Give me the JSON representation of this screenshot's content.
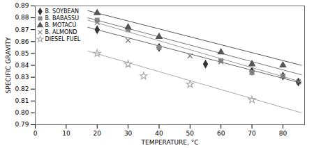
{
  "chart_data": {
    "type": "scatter",
    "xlabel": "TEMPERATURE, °C",
    "ylabel": "SPECIFIC GRAVITY",
    "xlim": [
      0,
      87
    ],
    "ylim": [
      0.79,
      0.89
    ],
    "xticks": [
      0,
      10,
      20,
      30,
      40,
      50,
      60,
      70,
      80
    ],
    "yticks": [
      0.79,
      {
        "value": 0.8,
        "label": "0.80"
      },
      0.81,
      0.82,
      0.83,
      0.84,
      0.85,
      0.86,
      0.87,
      0.88,
      0.89
    ],
    "grid": false,
    "legend": "upper left",
    "series": [
      {
        "name": "B. SOYBEAN",
        "color": "#333333",
        "marker": "diamond",
        "x": [
          20,
          40,
          55,
          70,
          80,
          85
        ],
        "values": [
          0.87,
          0.855,
          0.841,
          0.835,
          0.831,
          0.826
        ],
        "trend": {
          "color": "#666666",
          "x": [
            17,
            86
          ],
          "values": [
            0.872,
            0.825
          ]
        }
      },
      {
        "name": "B. BABASSU",
        "color": "#888888",
        "marker": "square",
        "x": [
          20,
          30,
          40,
          60,
          70,
          80
        ],
        "values": [
          0.878,
          0.87,
          0.855,
          0.844,
          0.834,
          0.831
        ],
        "trend": {
          "color": "#777777",
          "x": [
            17,
            86
          ],
          "values": [
            0.88,
            0.832
          ]
        }
      },
      {
        "name": "B. MOTACÚ",
        "color": "#555555",
        "marker": "triangle",
        "x": [
          20,
          30,
          40,
          60,
          70,
          80
        ],
        "values": [
          0.884,
          0.872,
          0.864,
          0.851,
          0.841,
          0.84
        ],
        "trend": {
          "color": "#555555",
          "x": [
            17,
            86
          ],
          "values": [
            0.886,
            0.84
          ]
        }
      },
      {
        "name": "B. ALMOND",
        "color": "#777777",
        "marker": "x",
        "x": [
          20,
          30,
          50,
          60,
          70,
          80,
          85
        ],
        "values": [
          0.876,
          0.861,
          0.848,
          0.843,
          0.834,
          0.831,
          0.826
        ],
        "trend": {
          "color": "#999999",
          "x": [
            17,
            86
          ],
          "values": [
            0.878,
            0.826
          ]
        }
      },
      {
        "name": "DIESEL FUEL",
        "color": "#aaaaaa",
        "marker": "star",
        "x": [
          20,
          30,
          35,
          50,
          70
        ],
        "values": [
          0.85,
          0.841,
          0.831,
          0.824,
          0.811
        ],
        "trend": {
          "color": "#aaaaaa",
          "x": [
            17,
            86
          ],
          "values": [
            0.852,
            0.8
          ]
        }
      }
    ]
  }
}
